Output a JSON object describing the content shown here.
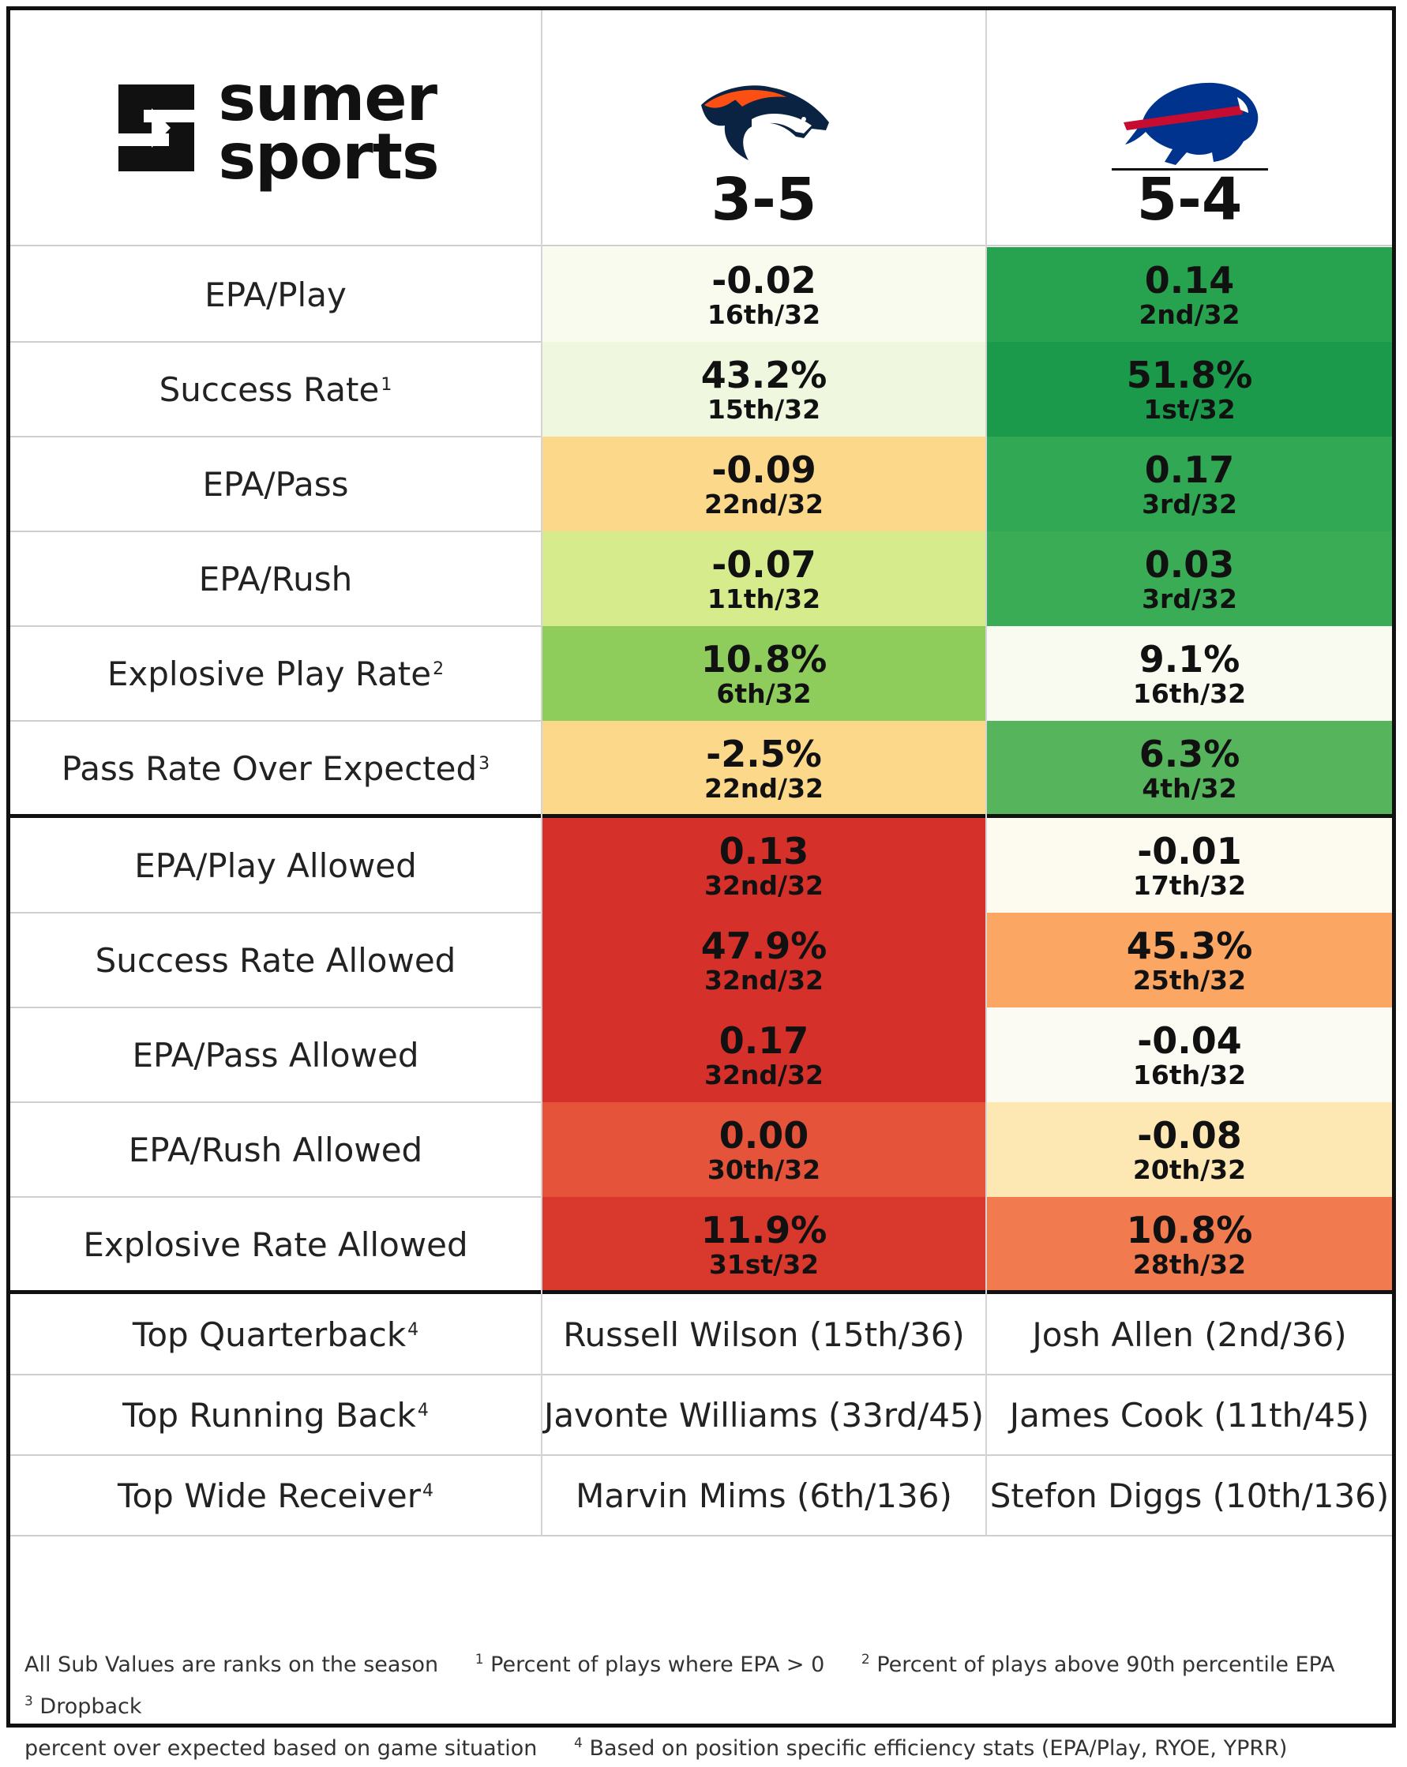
{
  "brand": {
    "line1": "sumer",
    "line2": "sports"
  },
  "teams": [
    {
      "name": "Broncos",
      "record": "3-5",
      "logo_color": "#FB4F14",
      "logo_navy": "#0A2343"
    },
    {
      "name": "Bills",
      "record": "5-4",
      "logo_color": "#C60C30",
      "logo_blue": "#00338D"
    }
  ],
  "offense_rows": [
    {
      "label": "EPA/Play",
      "sup": "",
      "cells": [
        {
          "value": "-0.02",
          "rank": "16th/32",
          "color": "#f9fbef"
        },
        {
          "value": "0.14",
          "rank": "2nd/32",
          "color": "#27a24e"
        }
      ]
    },
    {
      "label": "Success Rate",
      "sup": "1",
      "cells": [
        {
          "value": "43.2%",
          "rank": "15th/32",
          "color": "#eff7de"
        },
        {
          "value": "51.8%",
          "rank": "1st/32",
          "color": "#1a9a4a"
        }
      ]
    },
    {
      "label": "EPA/Pass",
      "sup": "",
      "cells": [
        {
          "value": "-0.09",
          "rank": "22nd/32",
          "color": "#fcd98a"
        },
        {
          "value": "0.17",
          "rank": "3rd/32",
          "color": "#31a853"
        }
      ]
    },
    {
      "label": "EPA/Rush",
      "sup": "",
      "cells": [
        {
          "value": "-0.07",
          "rank": "11th/32",
          "color": "#d6ec8c"
        },
        {
          "value": "0.03",
          "rank": "3rd/32",
          "color": "#3aac55"
        }
      ]
    },
    {
      "label": "Explosive Play Rate",
      "sup": "2",
      "cells": [
        {
          "value": "10.8%",
          "rank": "6th/32",
          "color": "#8ecd5c"
        },
        {
          "value": "9.1%",
          "rank": "16th/32",
          "color": "#f9fbf1"
        }
      ]
    },
    {
      "label": "Pass Rate Over Expected",
      "sup": "3",
      "cells": [
        {
          "value": "-2.5%",
          "rank": "22nd/32",
          "color": "#fcd98a"
        },
        {
          "value": "6.3%",
          "rank": "4th/32",
          "color": "#56b55c"
        }
      ]
    }
  ],
  "defense_rows": [
    {
      "label": "EPA/Play Allowed",
      "sup": "",
      "cells": [
        {
          "value": "0.13",
          "rank": "32nd/32",
          "color": "#d5312a"
        },
        {
          "value": "-0.01",
          "rank": "17th/32",
          "color": "#fdfbf0"
        }
      ]
    },
    {
      "label": "Success Rate Allowed",
      "sup": "",
      "cells": [
        {
          "value": "47.9%",
          "rank": "32nd/32",
          "color": "#d5312a"
        },
        {
          "value": "45.3%",
          "rank": "25th/32",
          "color": "#fba763"
        }
      ]
    },
    {
      "label": "EPA/Pass Allowed",
      "sup": "",
      "cells": [
        {
          "value": "0.17",
          "rank": "32nd/32",
          "color": "#d5312a"
        },
        {
          "value": "-0.04",
          "rank": "16th/32",
          "color": "#fbfbf4"
        }
      ]
    },
    {
      "label": "EPA/Rush Allowed",
      "sup": "",
      "cells": [
        {
          "value": "0.00",
          "rank": "30th/32",
          "color": "#e4533a"
        },
        {
          "value": "-0.08",
          "rank": "20th/32",
          "color": "#fde8b3"
        }
      ]
    },
    {
      "label": "Explosive Rate Allowed",
      "sup": "",
      "cells": [
        {
          "value": "11.9%",
          "rank": "31st/32",
          "color": "#d9392d"
        },
        {
          "value": "10.8%",
          "rank": "28th/32",
          "color": "#f17b4e"
        }
      ]
    }
  ],
  "player_rows": [
    {
      "label": "Top Quarterback",
      "sup": "4",
      "cells": [
        "Russell Wilson (15th/36)",
        "Josh Allen (2nd/36)"
      ]
    },
    {
      "label": "Top Running Back",
      "sup": "4",
      "cells": [
        "Javonte Williams (33rd/45)",
        "James Cook (11th/45)"
      ]
    },
    {
      "label": "Top Wide Receiver",
      "sup": "4",
      "cells": [
        "Marvin Mims (6th/136)",
        "Stefon Diggs (10th/136)"
      ]
    }
  ],
  "footer": {
    "note0": "All Sub Values are ranks on the season",
    "sup1": "1",
    "note1": "Percent of plays where EPA > 0",
    "sup2": "2",
    "note2": "Percent of plays above 90th percentile EPA",
    "sup3": "3",
    "note3_a": "Dropback",
    "note3_b": "percent over expected based on game situation",
    "sup4": "4",
    "note4": "Based on position specific efficiency stats (EPA/Play, RYOE, YPRR)"
  }
}
